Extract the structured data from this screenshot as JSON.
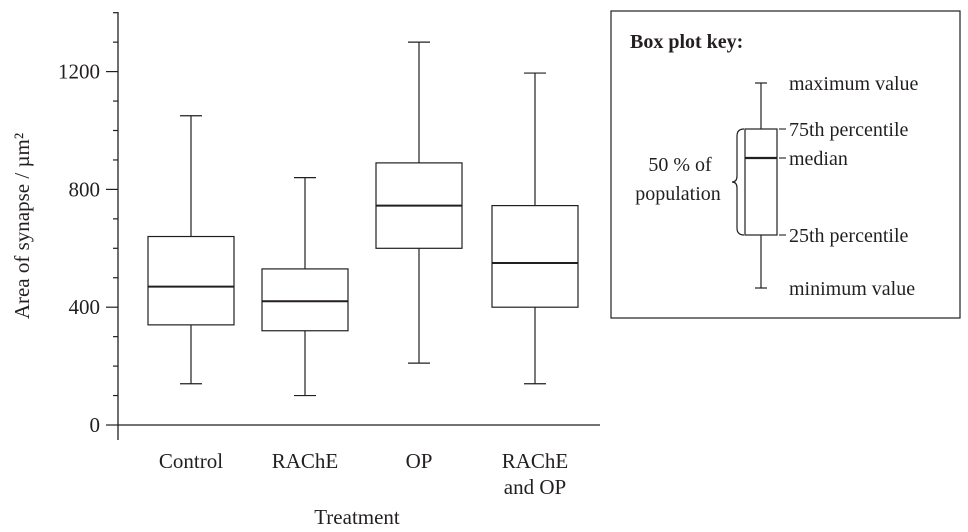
{
  "chart_data": {
    "type": "boxplot",
    "xlabel": "Treatment",
    "ylabel": "Area of synapse / µm²",
    "ylim": [
      0,
      1400
    ],
    "yticks": [
      0,
      400,
      800,
      1200
    ],
    "y_minor_step": 100,
    "categories": [
      {
        "label": [
          "Control"
        ],
        "min": 140,
        "q1": 340,
        "median": 470,
        "q3": 640,
        "max": 1050
      },
      {
        "label": [
          "RAChE"
        ],
        "min": 100,
        "q1": 320,
        "median": 420,
        "q3": 530,
        "max": 840
      },
      {
        "label": [
          "OP"
        ],
        "min": 210,
        "q1": 600,
        "median": 745,
        "q3": 890,
        "max": 1300
      },
      {
        "label": [
          "RAChE",
          "and OP"
        ],
        "min": 140,
        "q1": 400,
        "median": 550,
        "q3": 745,
        "max": 1195
      }
    ]
  },
  "key": {
    "title": "Box plot key:",
    "max_label": "maximum value",
    "q3_label": "75th percentile",
    "median_label": "median",
    "q1_label": "25th percentile",
    "min_label": "minimum value",
    "population_line1": "50 % of",
    "population_line2": "population"
  }
}
